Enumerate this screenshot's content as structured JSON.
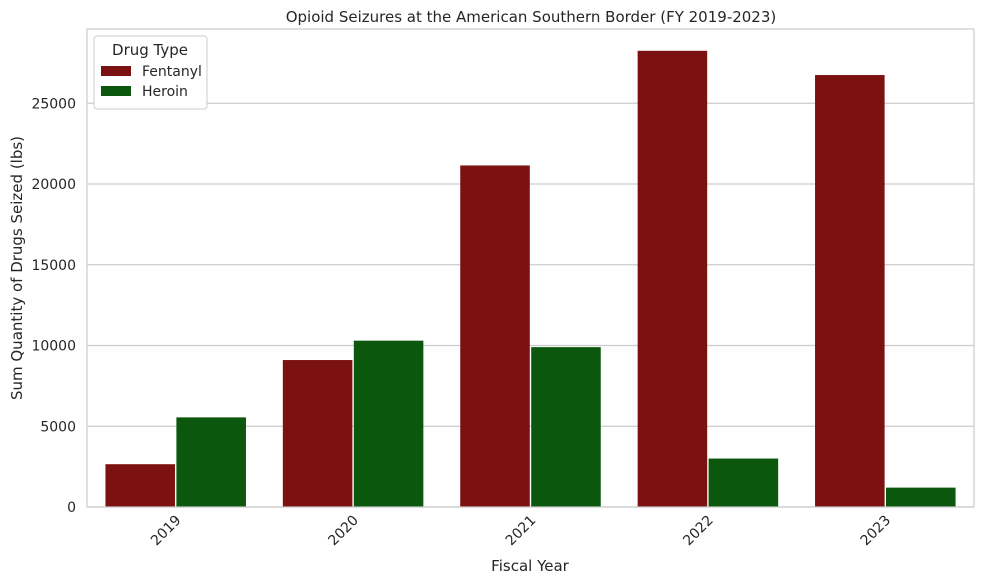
{
  "chart_data": {
    "type": "bar",
    "title": "Opioid Seizures at the American Southern Border (FY 2019-2023)",
    "xlabel": "Fiscal Year",
    "ylabel": "Sum Quantity of Drugs Seized (lbs)",
    "categories": [
      "2019",
      "2020",
      "2021",
      "2022",
      "2023"
    ],
    "series": [
      {
        "name": "Fentanyl",
        "color": "#7b1211",
        "values": [
          2650,
          9100,
          21150,
          28250,
          26750
        ]
      },
      {
        "name": "Heroin",
        "color": "#0b570d",
        "values": [
          5550,
          10300,
          9900,
          3000,
          1200
        ]
      }
    ],
    "ylim": [
      0,
      29600
    ],
    "yticks": [
      0,
      5000,
      10000,
      15000,
      20000,
      25000
    ],
    "grid": true,
    "legend": {
      "title": "Drug Type",
      "placement": "top-left"
    }
  }
}
